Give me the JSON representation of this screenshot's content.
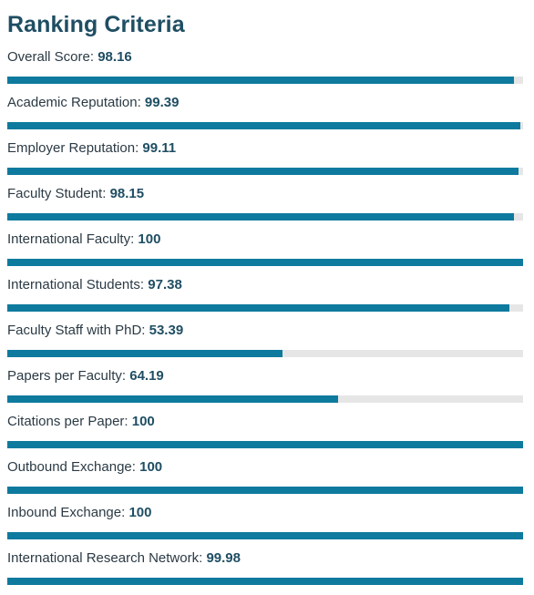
{
  "heading": "Ranking Criteria",
  "colors": {
    "heading": "#1f4e63",
    "bar_fill": "#0e7a9e",
    "bar_track": "#e6e6e6"
  },
  "criteria": [
    {
      "label": "Overall Score:",
      "value": "98.16",
      "fraction": 0.9816
    },
    {
      "label": "Academic Reputation:",
      "value": "99.39",
      "fraction": 0.9939
    },
    {
      "label": "Employer Reputation:",
      "value": "99.11",
      "fraction": 0.9911
    },
    {
      "label": "Faculty Student:",
      "value": "98.15",
      "fraction": 0.9815
    },
    {
      "label": "International Faculty:",
      "value": "100",
      "fraction": 1.0
    },
    {
      "label": "International Students:",
      "value": "97.38",
      "fraction": 0.9738
    },
    {
      "label": "Faculty Staff with PhD:",
      "value": "53.39",
      "fraction": 0.5339
    },
    {
      "label": "Papers per Faculty:",
      "value": "64.19",
      "fraction": 0.6419
    },
    {
      "label": "Citations per Paper:",
      "value": "100",
      "fraction": 1.0
    },
    {
      "label": "Outbound Exchange:",
      "value": "100",
      "fraction": 1.0
    },
    {
      "label": "Inbound Exchange:",
      "value": "100",
      "fraction": 1.0
    },
    {
      "label": "International Research Network:",
      "value": "99.98",
      "fraction": 0.9998
    }
  ]
}
